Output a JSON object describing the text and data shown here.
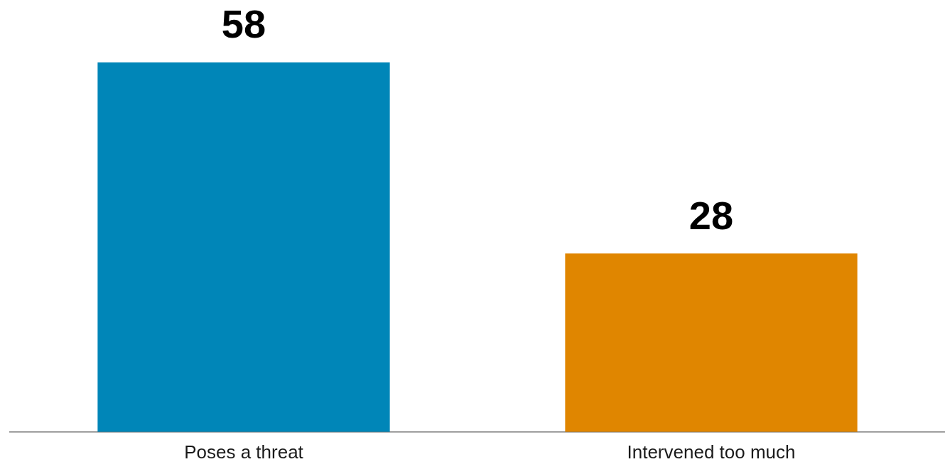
{
  "chart_data": {
    "type": "bar",
    "categories": [
      "Poses a threat",
      "Intervened too much"
    ],
    "values": [
      58,
      28
    ],
    "colors": [
      "#0086b8",
      "#e08600"
    ],
    "data_labels": true,
    "grid": false,
    "legend": false,
    "tick_labels": "x"
  }
}
